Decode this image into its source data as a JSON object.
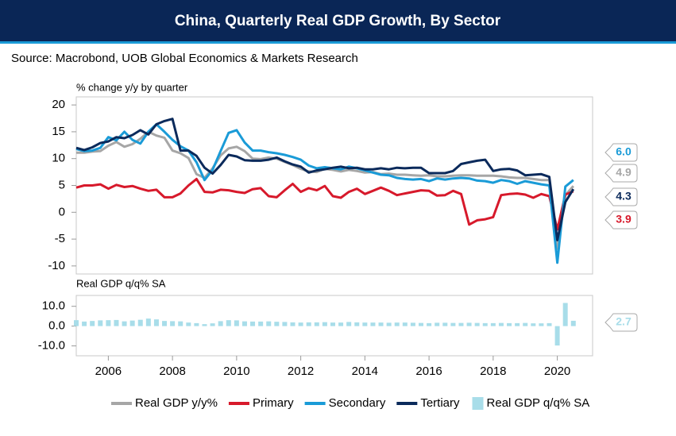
{
  "chart_data": [
    {
      "type": "line",
      "title": "China, Quarterly Real GDP Growth, By Sector",
      "source": "Source: Macrobond, UOB Global Economics & Markets Research",
      "y_label": "% change y/y by quarter",
      "x": [
        2005,
        2005.25,
        2005.5,
        2005.75,
        2006,
        2006.25,
        2006.5,
        2006.75,
        2007,
        2007.25,
        2007.5,
        2007.75,
        2008,
        2008.25,
        2008.5,
        2008.75,
        2009,
        2009.25,
        2009.5,
        2009.75,
        2010,
        2010.25,
        2010.5,
        2010.75,
        2011,
        2011.25,
        2011.5,
        2011.75,
        2012,
        2012.25,
        2012.5,
        2012.75,
        2013,
        2013.25,
        2013.5,
        2013.75,
        2014,
        2014.25,
        2014.5,
        2014.75,
        2015,
        2015.25,
        2015.5,
        2015.75,
        2016,
        2016.25,
        2016.5,
        2016.75,
        2017,
        2017.25,
        2017.5,
        2017.75,
        2018,
        2018.25,
        2018.5,
        2018.75,
        2019,
        2019.25,
        2019.5,
        2019.75,
        2020,
        2020.25,
        2020.5
      ],
      "xlim": [
        2005,
        2021.1
      ],
      "ylim": [
        -11.5,
        21.5
      ],
      "yticks": [
        -10,
        -5,
        0,
        5,
        10,
        15,
        20
      ],
      "series": [
        {
          "name": "Real GDP y/y%",
          "color": "#a6a6a6",
          "end_label": "4.9",
          "values": [
            11.1,
            11.1,
            11.3,
            11.4,
            12.4,
            13.1,
            12.2,
            12.7,
            13.7,
            15.0,
            14.3,
            13.9,
            11.5,
            11.0,
            10.1,
            7.1,
            6.4,
            8.2,
            10.6,
            11.9,
            12.2,
            11.4,
            10.0,
            9.9,
            10.2,
            10.0,
            9.4,
            8.8,
            8.1,
            7.6,
            7.5,
            8.1,
            7.9,
            7.6,
            7.9,
            7.7,
            7.4,
            7.5,
            7.1,
            7.2,
            7.0,
            7.0,
            6.9,
            6.8,
            6.9,
            6.7,
            6.7,
            6.8,
            6.9,
            6.9,
            6.8,
            6.8,
            6.8,
            6.7,
            6.5,
            6.4,
            6.4,
            6.2,
            6.0,
            6.0,
            -6.8,
            3.2,
            4.9
          ]
        },
        {
          "name": "Primary",
          "color": "#d7192b",
          "end_label": "3.9",
          "values": [
            4.6,
            5.0,
            5.0,
            5.2,
            4.4,
            5.1,
            4.7,
            4.9,
            4.4,
            4.0,
            4.2,
            2.8,
            2.8,
            3.5,
            5.0,
            6.2,
            3.8,
            3.7,
            4.2,
            4.1,
            3.8,
            3.6,
            4.3,
            4.5,
            3.0,
            2.8,
            4.1,
            5.3,
            3.8,
            4.5,
            4.1,
            4.9,
            3.0,
            2.7,
            3.8,
            4.4,
            3.4,
            4.0,
            4.6,
            4.0,
            3.2,
            3.5,
            3.8,
            4.1,
            4.0,
            3.1,
            3.2,
            4.0,
            3.4,
            -2.3,
            -1.5,
            -1.3,
            -0.9,
            3.2,
            3.4,
            3.5,
            3.3,
            2.7,
            3.4,
            3.0,
            -3.2,
            3.3,
            3.9
          ]
        },
        {
          "name": "Secondary",
          "color": "#1a9bd7",
          "end_label": "6.0",
          "values": [
            11.8,
            11.4,
            11.5,
            12.0,
            14.0,
            13.4,
            15.0,
            13.5,
            12.8,
            15.0,
            16.4,
            15.0,
            13.5,
            12.3,
            11.5,
            9.3,
            6.0,
            7.9,
            11.4,
            14.8,
            15.3,
            13.0,
            11.5,
            11.5,
            11.2,
            11.0,
            10.7,
            10.3,
            9.8,
            8.7,
            8.2,
            8.4,
            8.2,
            8.0,
            8.5,
            8.2,
            7.8,
            7.4,
            7.0,
            6.9,
            6.4,
            6.2,
            6.1,
            6.2,
            5.8,
            6.3,
            6.1,
            6.3,
            6.4,
            6.3,
            5.9,
            5.8,
            5.5,
            6.0,
            5.8,
            5.3,
            5.8,
            5.5,
            5.2,
            5.0,
            -9.4,
            4.8,
            6.0
          ]
        },
        {
          "name": "Tertiary",
          "color": "#0b2a5b",
          "end_label": "4.3",
          "values": [
            12.0,
            11.6,
            12.1,
            12.9,
            13.2,
            14.0,
            13.8,
            14.4,
            15.3,
            14.5,
            16.4,
            17.0,
            17.4,
            11.5,
            11.5,
            10.5,
            8.3,
            7.2,
            8.8,
            10.7,
            10.4,
            9.7,
            9.6,
            9.6,
            9.8,
            10.2,
            9.5,
            8.9,
            8.5,
            7.4,
            7.8,
            8.0,
            8.3,
            8.5,
            8.2,
            8.3,
            8.0,
            8.0,
            8.2,
            8.0,
            8.3,
            8.2,
            8.3,
            8.3,
            7.3,
            7.3,
            7.3,
            7.7,
            9.0,
            9.3,
            9.6,
            9.8,
            7.7,
            8.0,
            8.1,
            7.8,
            6.9,
            7.0,
            7.1,
            6.6,
            -5.2,
            1.9,
            4.3
          ]
        }
      ]
    },
    {
      "type": "bar",
      "y_label": "Real GDP q/q% SA",
      "x": [
        2005,
        2005.25,
        2005.5,
        2005.75,
        2006,
        2006.25,
        2006.5,
        2006.75,
        2007,
        2007.25,
        2007.5,
        2007.75,
        2008,
        2008.25,
        2008.5,
        2008.75,
        2009,
        2009.25,
        2009.5,
        2009.75,
        2010,
        2010.25,
        2010.5,
        2010.75,
        2011,
        2011.25,
        2011.5,
        2011.75,
        2012,
        2012.25,
        2012.5,
        2012.75,
        2013,
        2013.25,
        2013.5,
        2013.75,
        2014,
        2014.25,
        2014.5,
        2014.75,
        2015,
        2015.25,
        2015.5,
        2015.75,
        2016,
        2016.25,
        2016.5,
        2016.75,
        2017,
        2017.25,
        2017.5,
        2017.75,
        2018,
        2018.25,
        2018.5,
        2018.75,
        2019,
        2019.25,
        2019.5,
        2019.75,
        2020,
        2020.25,
        2020.5
      ],
      "xlim": [
        2005,
        2021.1
      ],
      "xticks": [
        2006,
        2008,
        2010,
        2012,
        2014,
        2016,
        2018,
        2020
      ],
      "ylim": [
        -15,
        15.5
      ],
      "yticks": [
        {
          "value": -10,
          "label": "-10.0"
        },
        {
          "value": 0,
          "label": "0.0"
        },
        {
          "value": 10,
          "label": "10.0"
        }
      ],
      "series": [
        {
          "name": "Real GDP q/q% SA",
          "color": "#a8dde9",
          "end_label": "2.7",
          "values": [
            3.0,
            2.3,
            2.6,
            2.9,
            3.0,
            3.1,
            2.4,
            2.8,
            3.2,
            3.8,
            3.4,
            2.6,
            2.5,
            2.4,
            1.8,
            1.5,
            1.0,
            1.4,
            2.5,
            3.0,
            2.9,
            2.4,
            2.3,
            2.3,
            2.4,
            2.2,
            2.1,
            1.9,
            1.8,
            1.9,
            1.9,
            2.0,
            1.8,
            1.8,
            2.1,
            1.9,
            1.8,
            1.8,
            1.8,
            1.7,
            1.8,
            1.8,
            1.7,
            1.6,
            1.5,
            1.7,
            1.7,
            1.6,
            1.6,
            1.7,
            1.6,
            1.5,
            1.5,
            1.6,
            1.5,
            1.5,
            1.6,
            1.4,
            1.4,
            1.5,
            -9.8,
            11.7,
            2.7
          ]
        }
      ]
    }
  ]
}
